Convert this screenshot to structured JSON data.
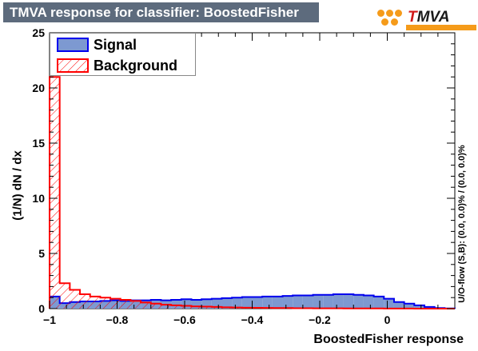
{
  "header": {
    "title": "TMVA response for classifier: BoostedFisher"
  },
  "logo": {
    "text_prefix": "T",
    "text_rest": "MVA",
    "accent": "#f59b1a",
    "red": "#d01818"
  },
  "legend": {
    "signal_label": "Signal",
    "background_label": "Background"
  },
  "axes": {
    "ylabel": "(1/N) dN / dx",
    "xlabel": "BoostedFisher response",
    "overflow_note": "U/O-flow (S,B): (0.0, 0.0)% / (0.0, 0.0)%"
  },
  "colors": {
    "signal_fill": "#7d99d1",
    "signal_line": "#0000ee",
    "background_line": "#ff0000"
  },
  "chart_data": {
    "type": "histogram",
    "title": "TMVA response for classifier: BoostedFisher",
    "xlabel": "BoostedFisher response",
    "ylabel": "(1/N) dN / dx",
    "xlim": [
      -1.0,
      0.2
    ],
    "ylim": [
      0,
      25
    ],
    "xticks": [
      -1,
      -0.8,
      -0.6,
      -0.4,
      -0.2,
      0
    ],
    "xtick_labels": [
      "−1",
      "−0.8",
      "−0.6",
      "−0.4",
      "−0.2",
      "0"
    ],
    "yticks": [
      0,
      5,
      10,
      15,
      20,
      25
    ],
    "ytick_labels": [
      "0",
      "5",
      "10",
      "15",
      "20",
      "25"
    ],
    "bin_edges": [
      -1.0,
      -0.97,
      -0.94,
      -0.91,
      -0.88,
      -0.85,
      -0.82,
      -0.79,
      -0.76,
      -0.73,
      -0.7,
      -0.67,
      -0.64,
      -0.61,
      -0.58,
      -0.55,
      -0.52,
      -0.49,
      -0.46,
      -0.43,
      -0.4,
      -0.37,
      -0.34,
      -0.31,
      -0.28,
      -0.25,
      -0.22,
      -0.19,
      -0.16,
      -0.13,
      -0.1,
      -0.07,
      -0.04,
      -0.01,
      0.02,
      0.05,
      0.08,
      0.11,
      0.14,
      0.17,
      0.2
    ],
    "series": [
      {
        "name": "Signal",
        "style": "filled",
        "values": [
          1.1,
          0.5,
          0.6,
          0.65,
          0.65,
          0.7,
          0.75,
          0.7,
          0.75,
          0.75,
          0.8,
          0.75,
          0.8,
          0.85,
          0.8,
          0.85,
          0.9,
          0.95,
          1.0,
          1.05,
          1.05,
          1.1,
          1.1,
          1.15,
          1.2,
          1.2,
          1.25,
          1.25,
          1.3,
          1.3,
          1.25,
          1.2,
          1.1,
          0.9,
          0.6,
          0.45,
          0.3,
          0.15,
          0.05,
          0.02
        ]
      },
      {
        "name": "Background",
        "style": "hatched",
        "values": [
          21.0,
          2.3,
          1.7,
          1.3,
          1.1,
          1.0,
          0.9,
          0.8,
          0.7,
          0.55,
          0.45,
          0.35,
          0.3,
          0.25,
          0.2,
          0.18,
          0.15,
          0.12,
          0.1,
          0.08,
          0.07,
          0.06,
          0.05,
          0.05,
          0.04,
          0.04,
          0.03,
          0.03,
          0.03,
          0.02,
          0.02,
          0.02,
          0.02,
          0.01,
          0.01,
          0.01,
          0.0,
          0.0,
          0.0,
          0.0
        ]
      }
    ]
  }
}
